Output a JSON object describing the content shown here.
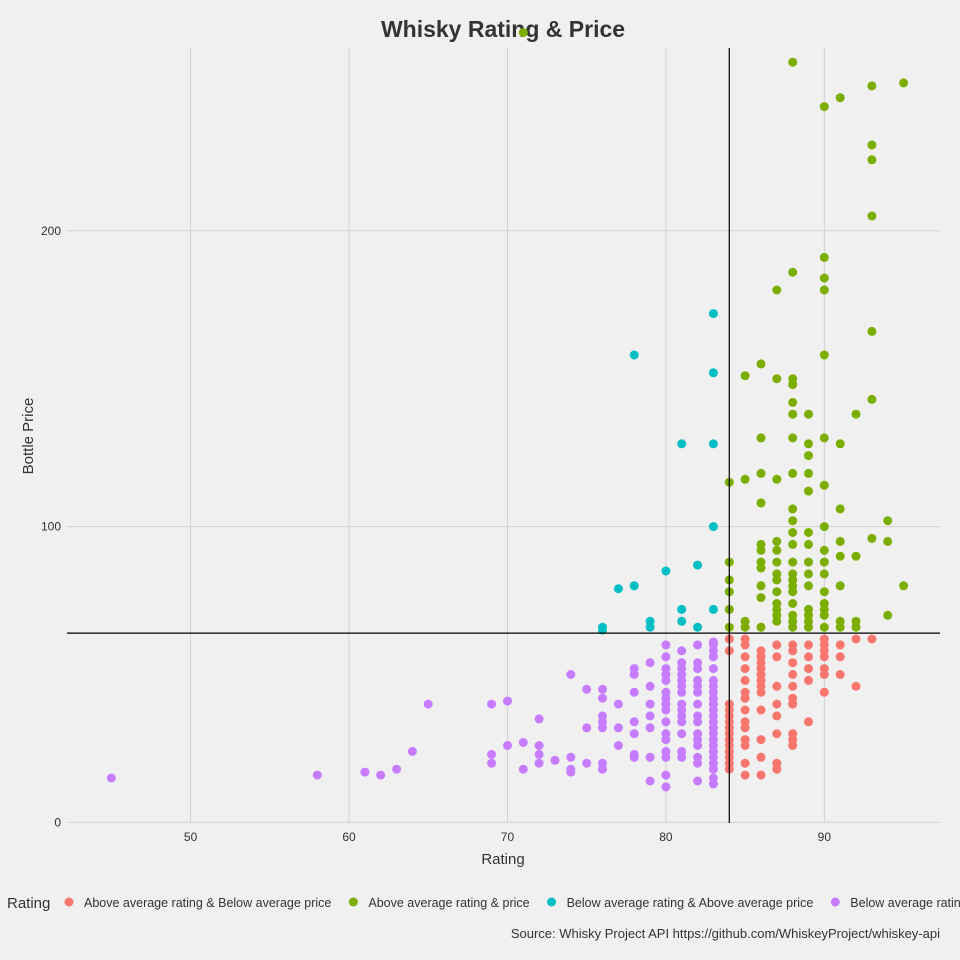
{
  "chart_data": {
    "type": "scatter",
    "title": "Whisky Rating & Price",
    "xlabel": "Rating",
    "ylabel": "Bottle Price",
    "xlim": [
      42.2,
      97.3
    ],
    "ylim": [
      -0.2,
      261.8
    ],
    "x_ticks": [
      50,
      60,
      70,
      80,
      90
    ],
    "x_tick_labels": [
      "50",
      "60",
      "70",
      "80",
      "90"
    ],
    "y_ticks": [
      0,
      100,
      200
    ],
    "y_tick_labels": [
      "0",
      "100",
      "200"
    ],
    "grid": true,
    "reference_lines": {
      "x": 84,
      "y": 64
    },
    "legend": {
      "title": "Rating",
      "placement": "bottom"
    },
    "caption": "Source: Whisky Project API https://github.com/WhiskeyProject/whiskey-api",
    "series": [
      {
        "name": "Above average rating & Below average price",
        "color": "#F8766D",
        "points": [
          [
            84,
            40
          ],
          [
            84,
            38
          ],
          [
            84,
            36
          ],
          [
            84,
            34
          ],
          [
            84,
            32
          ],
          [
            84,
            30
          ],
          [
            84,
            28
          ],
          [
            84,
            26
          ],
          [
            84,
            24
          ],
          [
            84,
            22
          ],
          [
            84,
            20
          ],
          [
            84,
            18
          ],
          [
            84,
            58
          ],
          [
            84,
            62
          ],
          [
            85,
            16
          ],
          [
            85,
            20
          ],
          [
            85,
            26
          ],
          [
            85,
            28
          ],
          [
            85,
            32
          ],
          [
            85,
            34
          ],
          [
            85,
            38
          ],
          [
            85,
            42
          ],
          [
            85,
            44
          ],
          [
            85,
            48
          ],
          [
            85,
            52
          ],
          [
            85,
            56
          ],
          [
            85,
            60
          ],
          [
            85,
            62
          ],
          [
            86,
            16
          ],
          [
            86,
            22
          ],
          [
            86,
            28
          ],
          [
            86,
            38
          ],
          [
            86,
            44
          ],
          [
            86,
            46
          ],
          [
            86,
            48
          ],
          [
            86,
            50
          ],
          [
            86,
            52
          ],
          [
            86,
            54
          ],
          [
            86,
            56
          ],
          [
            86,
            58
          ],
          [
            87,
            18
          ],
          [
            87,
            20
          ],
          [
            87,
            30
          ],
          [
            87,
            36
          ],
          [
            87,
            40
          ],
          [
            87,
            46
          ],
          [
            87,
            56
          ],
          [
            87,
            60
          ],
          [
            88,
            26
          ],
          [
            88,
            28
          ],
          [
            88,
            30
          ],
          [
            88,
            40
          ],
          [
            88,
            42
          ],
          [
            88,
            46
          ],
          [
            88,
            50
          ],
          [
            88,
            54
          ],
          [
            88,
            58
          ],
          [
            88,
            60
          ],
          [
            89,
            34
          ],
          [
            89,
            48
          ],
          [
            89,
            52
          ],
          [
            89,
            56
          ],
          [
            89,
            60
          ],
          [
            90,
            44
          ],
          [
            90,
            50
          ],
          [
            90,
            52
          ],
          [
            90,
            56
          ],
          [
            90,
            58
          ],
          [
            90,
            60
          ],
          [
            90,
            62
          ],
          [
            91,
            50
          ],
          [
            91,
            56
          ],
          [
            91,
            60
          ],
          [
            92,
            46
          ],
          [
            92,
            62
          ],
          [
            93,
            62
          ]
        ]
      },
      {
        "name": "Above average rating & price",
        "color": "#7CAE00",
        "points": [
          [
            71,
            267
          ],
          [
            84,
            66
          ],
          [
            84,
            72
          ],
          [
            84,
            78
          ],
          [
            84,
            82
          ],
          [
            84,
            88
          ],
          [
            84,
            115
          ],
          [
            85,
            66
          ],
          [
            85,
            68
          ],
          [
            85,
            116
          ],
          [
            85,
            151
          ],
          [
            86,
            66
          ],
          [
            86,
            76
          ],
          [
            86,
            80
          ],
          [
            86,
            86
          ],
          [
            86,
            88
          ],
          [
            86,
            92
          ],
          [
            86,
            94
          ],
          [
            86,
            108
          ],
          [
            86,
            118
          ],
          [
            86,
            130
          ],
          [
            86,
            155
          ],
          [
            87,
            68
          ],
          [
            87,
            70
          ],
          [
            87,
            72
          ],
          [
            87,
            74
          ],
          [
            87,
            78
          ],
          [
            87,
            82
          ],
          [
            87,
            84
          ],
          [
            87,
            88
          ],
          [
            87,
            92
          ],
          [
            87,
            95
          ],
          [
            87,
            116
          ],
          [
            87,
            150
          ],
          [
            87,
            180
          ],
          [
            88,
            66
          ],
          [
            88,
            68
          ],
          [
            88,
            70
          ],
          [
            88,
            74
          ],
          [
            88,
            78
          ],
          [
            88,
            80
          ],
          [
            88,
            82
          ],
          [
            88,
            84
          ],
          [
            88,
            88
          ],
          [
            88,
            94
          ],
          [
            88,
            98
          ],
          [
            88,
            102
          ],
          [
            88,
            106
          ],
          [
            88,
            118
          ],
          [
            88,
            130
          ],
          [
            88,
            138
          ],
          [
            88,
            142
          ],
          [
            88,
            148
          ],
          [
            88,
            150
          ],
          [
            88,
            186
          ],
          [
            88,
            257
          ],
          [
            89,
            66
          ],
          [
            89,
            68
          ],
          [
            89,
            70
          ],
          [
            89,
            72
          ],
          [
            89,
            80
          ],
          [
            89,
            84
          ],
          [
            89,
            88
          ],
          [
            89,
            94
          ],
          [
            89,
            98
          ],
          [
            89,
            112
          ],
          [
            89,
            118
          ],
          [
            89,
            124
          ],
          [
            89,
            128
          ],
          [
            89,
            138
          ],
          [
            90,
            66
          ],
          [
            90,
            70
          ],
          [
            90,
            72
          ],
          [
            90,
            74
          ],
          [
            90,
            78
          ],
          [
            90,
            84
          ],
          [
            90,
            88
          ],
          [
            90,
            92
          ],
          [
            90,
            100
          ],
          [
            90,
            114
          ],
          [
            90,
            130
          ],
          [
            90,
            158
          ],
          [
            90,
            180
          ],
          [
            90,
            184
          ],
          [
            90,
            191
          ],
          [
            90,
            242
          ],
          [
            91,
            66
          ],
          [
            91,
            68
          ],
          [
            91,
            80
          ],
          [
            91,
            90
          ],
          [
            91,
            95
          ],
          [
            91,
            106
          ],
          [
            91,
            128
          ],
          [
            91,
            245
          ],
          [
            92,
            66
          ],
          [
            92,
            68
          ],
          [
            92,
            90
          ],
          [
            92,
            138
          ],
          [
            93,
            96
          ],
          [
            93,
            143
          ],
          [
            93,
            166
          ],
          [
            93,
            205
          ],
          [
            93,
            224
          ],
          [
            93,
            229
          ],
          [
            93,
            249
          ],
          [
            94,
            70
          ],
          [
            94,
            95
          ],
          [
            94,
            102
          ],
          [
            95,
            80
          ],
          [
            95,
            250
          ]
        ]
      },
      {
        "name": "Below average rating & Above average price",
        "color": "#00BFC4",
        "points": [
          [
            76,
            66
          ],
          [
            76,
            65
          ],
          [
            77,
            79
          ],
          [
            78,
            80
          ],
          [
            78,
            158
          ],
          [
            79,
            66
          ],
          [
            79,
            68
          ],
          [
            80,
            85
          ],
          [
            81,
            68
          ],
          [
            81,
            72
          ],
          [
            81,
            128
          ],
          [
            82,
            66
          ],
          [
            82,
            87
          ],
          [
            83,
            72
          ],
          [
            83,
            100
          ],
          [
            83,
            128
          ],
          [
            83,
            152
          ],
          [
            83,
            172
          ]
        ]
      },
      {
        "name": "Below average rating & Below average price",
        "color": "#C77CFF",
        "points": [
          [
            45,
            15
          ],
          [
            58,
            16
          ],
          [
            61,
            17
          ],
          [
            62,
            16
          ],
          [
            63,
            18
          ],
          [
            64,
            24
          ],
          [
            65,
            40
          ],
          [
            69,
            20
          ],
          [
            69,
            23
          ],
          [
            69,
            40
          ],
          [
            70,
            26
          ],
          [
            70,
            41
          ],
          [
            71,
            18
          ],
          [
            71,
            27
          ],
          [
            72,
            20
          ],
          [
            72,
            23
          ],
          [
            72,
            26
          ],
          [
            72,
            35
          ],
          [
            73,
            21
          ],
          [
            74,
            17
          ],
          [
            74,
            18
          ],
          [
            74,
            22
          ],
          [
            74,
            50
          ],
          [
            75,
            20
          ],
          [
            75,
            32
          ],
          [
            75,
            45
          ],
          [
            76,
            18
          ],
          [
            76,
            20
          ],
          [
            76,
            32
          ],
          [
            76,
            34
          ],
          [
            76,
            36
          ],
          [
            76,
            42
          ],
          [
            76,
            45
          ],
          [
            77,
            26
          ],
          [
            77,
            32
          ],
          [
            77,
            40
          ],
          [
            78,
            22
          ],
          [
            78,
            23
          ],
          [
            78,
            30
          ],
          [
            78,
            34
          ],
          [
            78,
            44
          ],
          [
            78,
            50
          ],
          [
            78,
            52
          ],
          [
            79,
            14
          ],
          [
            79,
            22
          ],
          [
            79,
            32
          ],
          [
            79,
            36
          ],
          [
            79,
            40
          ],
          [
            79,
            46
          ],
          [
            79,
            54
          ],
          [
            80,
            12
          ],
          [
            80,
            16
          ],
          [
            80,
            22
          ],
          [
            80,
            24
          ],
          [
            80,
            28
          ],
          [
            80,
            30
          ],
          [
            80,
            34
          ],
          [
            80,
            38
          ],
          [
            80,
            40
          ],
          [
            80,
            42
          ],
          [
            80,
            44
          ],
          [
            80,
            48
          ],
          [
            80,
            50
          ],
          [
            80,
            52
          ],
          [
            80,
            56
          ],
          [
            80,
            60
          ],
          [
            81,
            22
          ],
          [
            81,
            24
          ],
          [
            81,
            30
          ],
          [
            81,
            34
          ],
          [
            81,
            36
          ],
          [
            81,
            38
          ],
          [
            81,
            40
          ],
          [
            81,
            44
          ],
          [
            81,
            46
          ],
          [
            81,
            48
          ],
          [
            81,
            50
          ],
          [
            81,
            52
          ],
          [
            81,
            54
          ],
          [
            81,
            58
          ],
          [
            82,
            14
          ],
          [
            82,
            20
          ],
          [
            82,
            22
          ],
          [
            82,
            26
          ],
          [
            82,
            28
          ],
          [
            82,
            30
          ],
          [
            82,
            34
          ],
          [
            82,
            36
          ],
          [
            82,
            40
          ],
          [
            82,
            44
          ],
          [
            82,
            46
          ],
          [
            82,
            48
          ],
          [
            82,
            52
          ],
          [
            82,
            54
          ],
          [
            82,
            60
          ],
          [
            83,
            13
          ],
          [
            83,
            15
          ],
          [
            83,
            18
          ],
          [
            83,
            20
          ],
          [
            83,
            22
          ],
          [
            83,
            24
          ],
          [
            83,
            26
          ],
          [
            83,
            28
          ],
          [
            83,
            30
          ],
          [
            83,
            32
          ],
          [
            83,
            34
          ],
          [
            83,
            36
          ],
          [
            83,
            38
          ],
          [
            83,
            40
          ],
          [
            83,
            42
          ],
          [
            83,
            44
          ],
          [
            83,
            46
          ],
          [
            83,
            48
          ],
          [
            83,
            52
          ],
          [
            83,
            56
          ],
          [
            83,
            58
          ],
          [
            83,
            60
          ],
          [
            83,
            61
          ]
        ]
      }
    ]
  }
}
